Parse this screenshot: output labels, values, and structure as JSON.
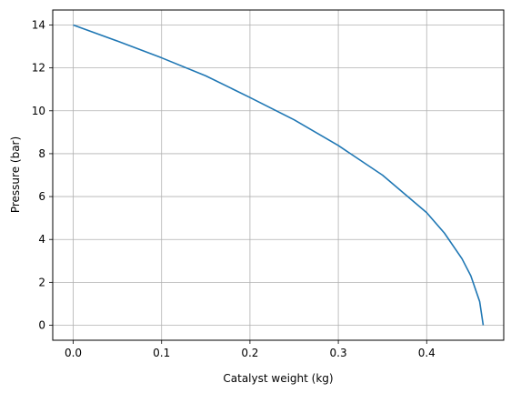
{
  "chart_data": {
    "type": "line",
    "title": "",
    "xlabel": "Catalyst weight (kg)",
    "ylabel": "Pressure (bar)",
    "xlim": [
      -0.0232,
      0.4872
    ],
    "ylim": [
      -0.7,
      14.7
    ],
    "grid": true,
    "xticks": [
      0.0,
      0.1,
      0.2,
      0.3,
      0.4
    ],
    "xtick_labels": [
      "0.0",
      "0.1",
      "0.2",
      "0.3",
      "0.4"
    ],
    "yticks": [
      0,
      2,
      4,
      6,
      8,
      10,
      12,
      14
    ],
    "ytick_labels": [
      "0",
      "2",
      "4",
      "6",
      "8",
      "10",
      "12",
      "14"
    ],
    "series": [
      {
        "name": "Pressure",
        "color": "#1f77b4",
        "x": [
          0.0,
          0.05,
          0.1,
          0.15,
          0.2,
          0.25,
          0.3,
          0.35,
          0.4,
          0.42,
          0.44,
          0.45,
          0.46,
          0.464
        ],
        "y": [
          14.0,
          13.25,
          12.47,
          11.63,
          10.62,
          9.58,
          8.38,
          7.0,
          5.25,
          4.3,
          3.1,
          2.3,
          1.1,
          0.0
        ]
      }
    ]
  }
}
